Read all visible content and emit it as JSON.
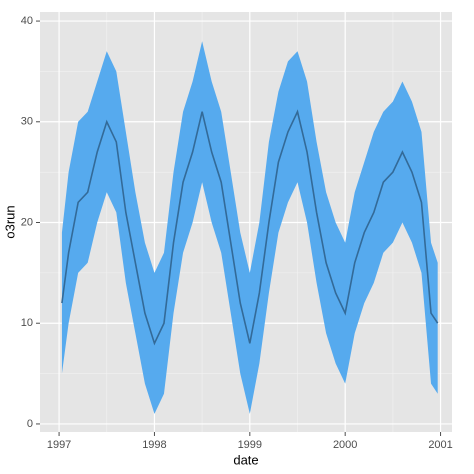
{
  "chart_data": {
    "type": "line-ribbon",
    "x_label": "date",
    "y_label": "o3run",
    "x": [
      1997.03,
      1997.1,
      1997.2,
      1997.3,
      1997.4,
      1997.5,
      1997.6,
      1997.7,
      1997.8,
      1997.9,
      1998.0,
      1998.1,
      1998.2,
      1998.3,
      1998.4,
      1998.5,
      1998.6,
      1998.7,
      1998.8,
      1998.9,
      1999.0,
      1999.1,
      1999.2,
      1999.3,
      1999.4,
      1999.5,
      1999.6,
      1999.7,
      1999.8,
      1999.9,
      2000.0,
      2000.1,
      2000.2,
      2000.3,
      2000.4,
      2000.5,
      2000.6,
      2000.7,
      2000.8,
      2000.9,
      2000.97
    ],
    "values": [
      12,
      17,
      22,
      23,
      27,
      30,
      28,
      21,
      16,
      11,
      8,
      10,
      18,
      24,
      27,
      31,
      27,
      24,
      18,
      12,
      8,
      13,
      20,
      26,
      29,
      31,
      27,
      21,
      16,
      13,
      11,
      16,
      19,
      21,
      24,
      25,
      27,
      25,
      22,
      11,
      10
    ],
    "upper": [
      19,
      25,
      30,
      31,
      34,
      37,
      35,
      29,
      23,
      18,
      15,
      17,
      25,
      31,
      34,
      38,
      34,
      31,
      25,
      19,
      15,
      20,
      28,
      33,
      36,
      37,
      34,
      28,
      23,
      20,
      18,
      23,
      26,
      29,
      31,
      32,
      34,
      32,
      29,
      18,
      16
    ],
    "lower": [
      5,
      10,
      15,
      16,
      20,
      23,
      21,
      14,
      9,
      4,
      1,
      3,
      11,
      17,
      20,
      24,
      20,
      17,
      11,
      5,
      1,
      6,
      13,
      19,
      22,
      24,
      20,
      14,
      9,
      6,
      4,
      9,
      12,
      14,
      17,
      18,
      20,
      18,
      15,
      4,
      3
    ],
    "color": "#336a98",
    "ribbon_color": "#56aaee",
    "xlim": [
      1996.8,
      2001.12
    ],
    "xticks": [
      1997,
      1998,
      1999,
      2000,
      2001
    ],
    "ylim": [
      -0.8,
      40.9
    ],
    "yticks": [
      0,
      10,
      20,
      30,
      40
    ],
    "grid": true
  }
}
